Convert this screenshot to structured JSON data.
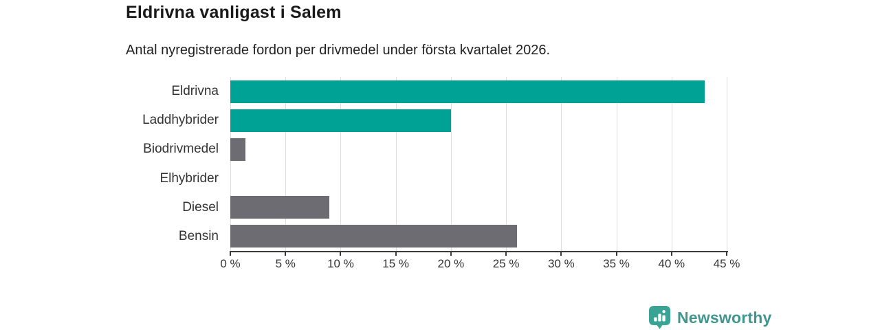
{
  "header": {
    "title": "Eldrivna vanligast i Salem",
    "subtitle": "Antal nyregistrerade fordon per drivmedel under första kvartalet 2026."
  },
  "chart_data": {
    "type": "bar",
    "orientation": "horizontal",
    "categories": [
      "Eldrivna",
      "Laddhybrider",
      "Biodrivmedel",
      "Elhybrider",
      "Diesel",
      "Bensin"
    ],
    "values": [
      43,
      20,
      1.4,
      0,
      9,
      26
    ],
    "unit": "%",
    "xlim": [
      0,
      45
    ],
    "xticks": [
      0,
      5,
      10,
      15,
      20,
      25,
      30,
      35,
      40,
      45
    ],
    "xtick_labels": [
      "0 %",
      "5 %",
      "10 %",
      "15 %",
      "20 %",
      "25 %",
      "30 %",
      "35 %",
      "40 %",
      "45 %"
    ],
    "grid": true,
    "legend": "none",
    "colors": {
      "highlight": "#00a296",
      "default": "#6c6c72",
      "gridline": "#dedede",
      "axis": "#3a3a3a",
      "label_text": "#333333"
    },
    "bar_color_keys": [
      "highlight",
      "highlight",
      "default",
      "default",
      "default",
      "default"
    ]
  },
  "footer": {
    "brand": "Newsworthy",
    "brand_text_color": "#3f968f",
    "brand_icon": "newsworthy-chart-bubble-icon",
    "brand_icon_color": "#3aa394"
  }
}
